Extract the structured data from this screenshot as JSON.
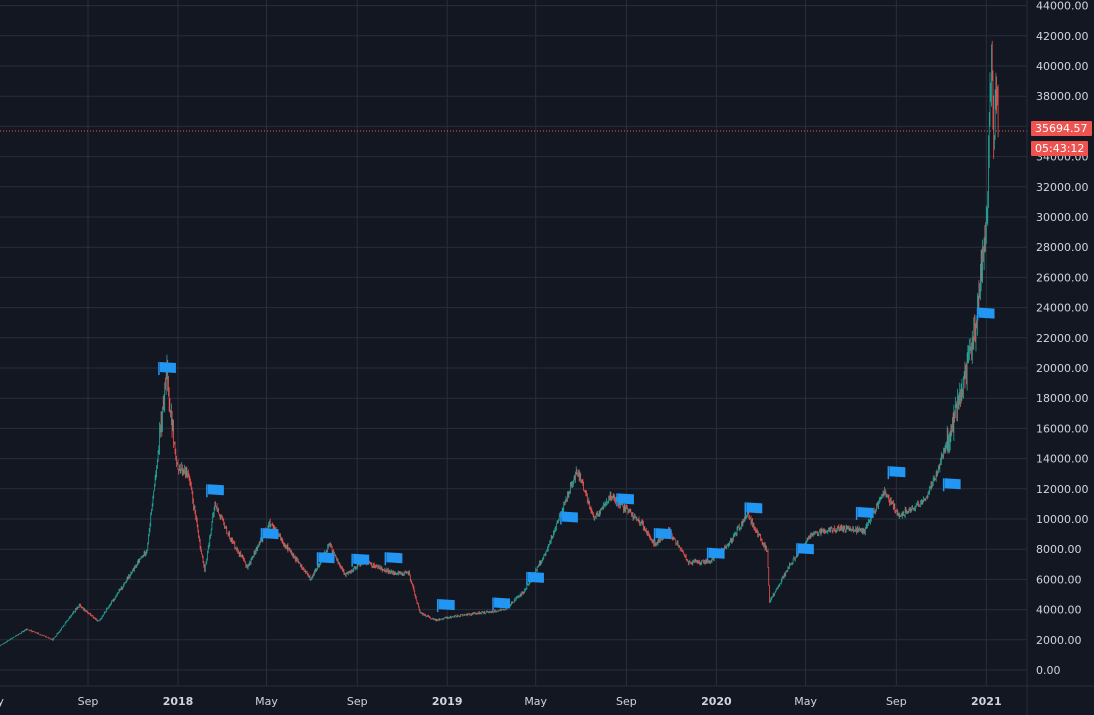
{
  "colors": {
    "background": "#131722",
    "grid": "#2a2e39",
    "axis_text": "#d1d4dc",
    "up": "#26a69a",
    "down": "#ef5350",
    "flag": "#2196f3",
    "price_line": "#ef5350"
  },
  "current_price": {
    "value": 35694.57,
    "label": "35694.57",
    "countdown": "05:43:12"
  },
  "chart_data": {
    "type": "candlestick",
    "title": "",
    "xlabel": "",
    "ylabel": "",
    "ylim": [
      0,
      44000
    ],
    "grid": true,
    "y_ticks": [
      "0.00",
      "2000.00",
      "4000.00",
      "6000.00",
      "8000.00",
      "10000.00",
      "12000.00",
      "14000.00",
      "16000.00",
      "18000.00",
      "20000.00",
      "22000.00",
      "24000.00",
      "26000.00",
      "28000.00",
      "30000.00",
      "32000.00",
      "34000.00",
      "36000.00",
      "38000.00",
      "40000.00",
      "42000.00",
      "44000.00"
    ],
    "x_ticks": [
      {
        "label": "ay",
        "date": "2017-05-01",
        "year": false
      },
      {
        "label": "Sep",
        "date": "2017-09-01",
        "year": false
      },
      {
        "label": "2018",
        "date": "2018-01-01",
        "year": true
      },
      {
        "label": "May",
        "date": "2018-05-01",
        "year": false
      },
      {
        "label": "Sep",
        "date": "2018-09-01",
        "year": false
      },
      {
        "label": "2019",
        "date": "2019-01-01",
        "year": true
      },
      {
        "label": "May",
        "date": "2019-05-01",
        "year": false
      },
      {
        "label": "Sep",
        "date": "2019-09-01",
        "year": false
      },
      {
        "label": "2020",
        "date": "2020-01-01",
        "year": true
      },
      {
        "label": "May",
        "date": "2020-05-01",
        "year": false
      },
      {
        "label": "Sep",
        "date": "2020-09-01",
        "year": false
      },
      {
        "label": "2021",
        "date": "2021-01-01",
        "year": true
      }
    ],
    "x_range": [
      "2017-05-01",
      "2021-04-15"
    ],
    "price_path": [
      [
        "2017-05-01",
        1500
      ],
      [
        "2017-06-10",
        2700
      ],
      [
        "2017-07-15",
        2000
      ],
      [
        "2017-08-20",
        4300
      ],
      [
        "2017-09-15",
        3200
      ],
      [
        "2017-10-20",
        5700
      ],
      [
        "2017-11-20",
        8000
      ],
      [
        "2017-12-17",
        19500
      ],
      [
        "2017-12-30",
        13500
      ],
      [
        "2018-01-15",
        13000
      ],
      [
        "2018-02-06",
        6500
      ],
      [
        "2018-02-20",
        11000
      ],
      [
        "2018-03-10",
        9000
      ],
      [
        "2018-04-05",
        6800
      ],
      [
        "2018-05-05",
        9700
      ],
      [
        "2018-06-30",
        6000
      ],
      [
        "2018-07-25",
        8300
      ],
      [
        "2018-08-15",
        6300
      ],
      [
        "2018-09-10",
        7200
      ],
      [
        "2018-10-20",
        6400
      ],
      [
        "2018-11-10",
        6400
      ],
      [
        "2018-11-25",
        3800
      ],
      [
        "2018-12-15",
        3300
      ],
      [
        "2019-01-15",
        3600
      ],
      [
        "2019-02-20",
        3800
      ],
      [
        "2019-03-20",
        4000
      ],
      [
        "2019-04-15",
        5200
      ],
      [
        "2019-05-15",
        7800
      ],
      [
        "2019-06-26",
        13200
      ],
      [
        "2019-07-20",
        10000
      ],
      [
        "2019-08-10",
        11500
      ],
      [
        "2019-09-20",
        9800
      ],
      [
        "2019-10-10",
        8300
      ],
      [
        "2019-10-28",
        9300
      ],
      [
        "2019-11-25",
        7100
      ],
      [
        "2019-12-25",
        7200
      ],
      [
        "2020-01-20",
        8500
      ],
      [
        "2020-02-12",
        10300
      ],
      [
        "2020-03-10",
        7900
      ],
      [
        "2020-03-13",
        4500
      ],
      [
        "2020-04-10",
        7000
      ],
      [
        "2020-05-10",
        9000
      ],
      [
        "2020-06-15",
        9400
      ],
      [
        "2020-07-20",
        9200
      ],
      [
        "2020-08-15",
        11800
      ],
      [
        "2020-09-05",
        10200
      ],
      [
        "2020-10-10",
        11200
      ],
      [
        "2020-10-25",
        13000
      ],
      [
        "2020-11-15",
        16000
      ],
      [
        "2020-12-01",
        19000
      ],
      [
        "2020-12-20",
        23500
      ],
      [
        "2021-01-02",
        30000
      ],
      [
        "2021-01-08",
        40500
      ],
      [
        "2021-01-11",
        34000
      ],
      [
        "2021-01-14",
        39000
      ],
      [
        "2021-01-17",
        35694
      ]
    ],
    "flags": [
      {
        "date": "2017-12-17",
        "price": 20000
      },
      {
        "date": "2018-02-20",
        "price": 11900
      },
      {
        "date": "2018-05-05",
        "price": 9000
      },
      {
        "date": "2018-07-20",
        "price": 7400
      },
      {
        "date": "2018-09-05",
        "price": 7300
      },
      {
        "date": "2018-10-20",
        "price": 7400
      },
      {
        "date": "2018-12-30",
        "price": 4300
      },
      {
        "date": "2019-03-15",
        "price": 4400
      },
      {
        "date": "2019-04-30",
        "price": 6100
      },
      {
        "date": "2019-06-15",
        "price": 10100
      },
      {
        "date": "2019-08-30",
        "price": 11300
      },
      {
        "date": "2019-10-20",
        "price": 9000
      },
      {
        "date": "2019-12-31",
        "price": 7700
      },
      {
        "date": "2020-02-20",
        "price": 10700
      },
      {
        "date": "2020-04-30",
        "price": 8000
      },
      {
        "date": "2020-07-20",
        "price": 10400
      },
      {
        "date": "2020-09-01",
        "price": 13100
      },
      {
        "date": "2020-11-15",
        "price": 12300
      },
      {
        "date": "2020-12-31",
        "price": 23600
      }
    ]
  }
}
